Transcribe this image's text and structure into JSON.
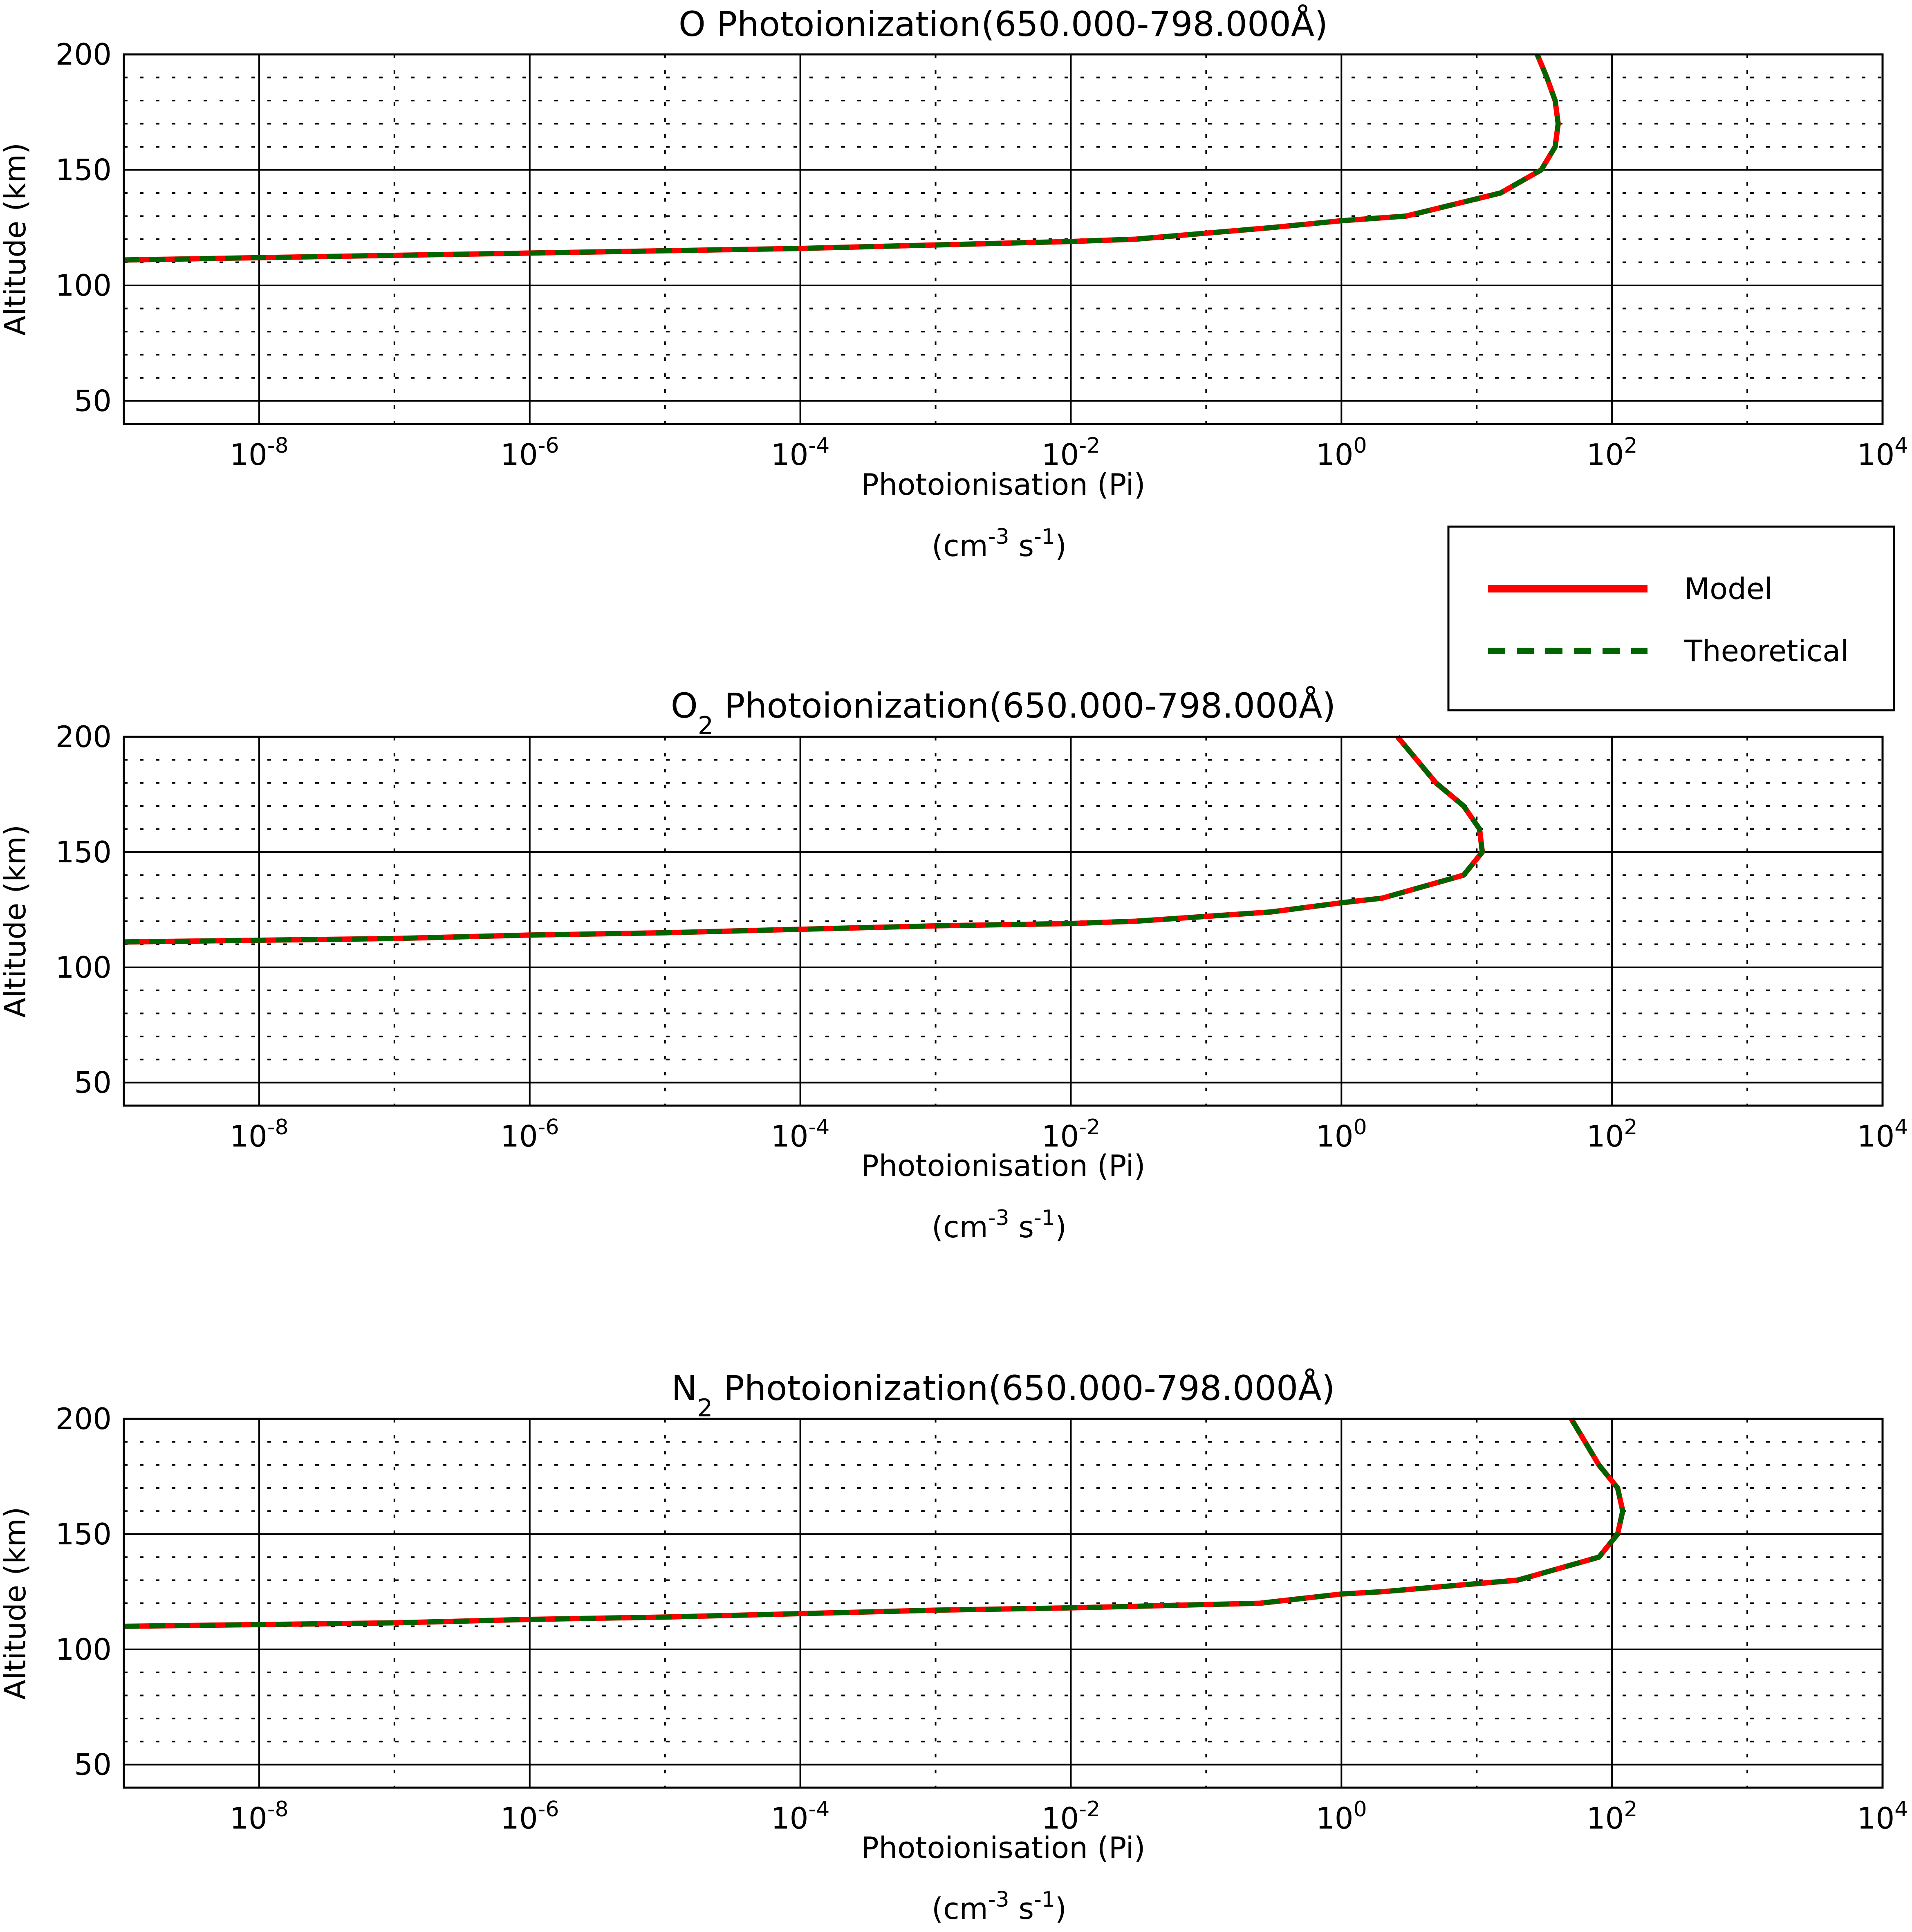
{
  "chart_data": [
    {
      "type": "line",
      "title": "O Photoionization(650.000-798.000Å)",
      "title_species": "O",
      "title_subscript": "",
      "title_rest": " Photoionization(650.000-798.000Å)",
      "xlabel": "Photoionisation (Pi)",
      "xunits": {
        "base": "(cm",
        "exp1": "-3",
        "mid": " s",
        "exp2": "-1",
        "end": ")"
      },
      "ylabel": "Altitude (km)",
      "xscale": "log",
      "xlim": [
        1e-09,
        10000
      ],
      "ylim": [
        40,
        200
      ],
      "xticks": [
        1e-08,
        1e-06,
        0.0001,
        0.01,
        1,
        100,
        10000
      ],
      "xtick_labels": [
        {
          "base": "10",
          "exp": "-8"
        },
        {
          "base": "10",
          "exp": "-6"
        },
        {
          "base": "10",
          "exp": "-4"
        },
        {
          "base": "10",
          "exp": "-2"
        },
        {
          "base": "10",
          "exp": "0"
        },
        {
          "base": "10",
          "exp": "2"
        },
        {
          "base": "10",
          "exp": "4"
        }
      ],
      "yticks": [
        "50",
        "100",
        "150",
        "200"
      ],
      "grid": "major solid, minor dotted",
      "series": [
        {
          "name": "Model",
          "color": "#ff0000",
          "style": "solid",
          "x": [
            1e-09,
            1e-07,
            1e-06,
            1e-05,
            0.0001,
            0.001,
            0.01,
            0.03,
            0.3,
            1,
            3,
            15,
            30,
            38,
            40,
            38,
            33,
            28
          ],
          "y": [
            111,
            113,
            114,
            115,
            116,
            117.5,
            119,
            120,
            125,
            128,
            130,
            140,
            150,
            160,
            170,
            180,
            190,
            200
          ]
        },
        {
          "name": "Theoretical",
          "color": "#006400",
          "style": "dashed",
          "x": [
            1e-09,
            1e-07,
            1e-06,
            1e-05,
            0.0001,
            0.001,
            0.01,
            0.03,
            0.3,
            1,
            3,
            15,
            30,
            38,
            40,
            38,
            33,
            28
          ],
          "y": [
            111,
            113,
            114,
            115,
            116,
            117.5,
            119,
            120,
            125,
            128,
            130,
            140,
            150,
            160,
            170,
            180,
            190,
            200
          ]
        }
      ]
    },
    {
      "type": "line",
      "title": "O2 Photoionization(650.000-798.000Å)",
      "title_species": "O",
      "title_subscript": "2",
      "title_rest": " Photoionization(650.000-798.000Å)",
      "xlabel": "Photoionisation (Pi)",
      "xunits": {
        "base": "(cm",
        "exp1": "-3",
        "mid": " s",
        "exp2": "-1",
        "end": ")"
      },
      "ylabel": "Altitude (km)",
      "xscale": "log",
      "xlim": [
        1e-09,
        10000
      ],
      "ylim": [
        40,
        200
      ],
      "xticks": [
        1e-08,
        1e-06,
        0.0001,
        0.01,
        1,
        100,
        10000
      ],
      "xtick_labels": [
        {
          "base": "10",
          "exp": "-8"
        },
        {
          "base": "10",
          "exp": "-6"
        },
        {
          "base": "10",
          "exp": "-4"
        },
        {
          "base": "10",
          "exp": "-2"
        },
        {
          "base": "10",
          "exp": "0"
        },
        {
          "base": "10",
          "exp": "2"
        },
        {
          "base": "10",
          "exp": "4"
        }
      ],
      "yticks": [
        "50",
        "100",
        "150",
        "200"
      ],
      "grid": "major solid, minor dotted",
      "series": [
        {
          "name": "Model",
          "color": "#ff0000",
          "style": "solid",
          "x": [
            1e-09,
            1e-07,
            1e-06,
            1e-05,
            0.0001,
            0.001,
            0.01,
            0.03,
            0.3,
            1,
            2,
            8,
            11,
            10.5,
            8,
            5,
            2.6
          ],
          "y": [
            111,
            112.5,
            114,
            115,
            116.5,
            118,
            119,
            120,
            124,
            128,
            130,
            140,
            150,
            160,
            170,
            180,
            200
          ]
        },
        {
          "name": "Theoretical",
          "color": "#006400",
          "style": "dashed",
          "x": [
            1e-09,
            1e-07,
            1e-06,
            1e-05,
            0.0001,
            0.001,
            0.01,
            0.03,
            0.3,
            1,
            2,
            8,
            11,
            10.5,
            8,
            5,
            2.6
          ],
          "y": [
            111,
            112.5,
            114,
            115,
            116.5,
            118,
            119,
            120,
            124,
            128,
            130,
            140,
            150,
            160,
            170,
            180,
            200
          ]
        }
      ]
    },
    {
      "type": "line",
      "title": "N2 Photoionization(650.000-798.000Å)",
      "title_species": "N",
      "title_subscript": "2",
      "title_rest": " Photoionization(650.000-798.000Å)",
      "xlabel": "Photoionisation (Pi)",
      "xunits": {
        "base": "(cm",
        "exp1": "-3",
        "mid": " s",
        "exp2": "-1",
        "end": ")"
      },
      "ylabel": "Altitude (km)",
      "xscale": "log",
      "xlim": [
        1e-09,
        10000
      ],
      "ylim": [
        40,
        200
      ],
      "xticks": [
        1e-08,
        1e-06,
        0.0001,
        0.01,
        1,
        100,
        10000
      ],
      "xtick_labels": [
        {
          "base": "10",
          "exp": "-8"
        },
        {
          "base": "10",
          "exp": "-6"
        },
        {
          "base": "10",
          "exp": "-4"
        },
        {
          "base": "10",
          "exp": "-2"
        },
        {
          "base": "10",
          "exp": "0"
        },
        {
          "base": "10",
          "exp": "2"
        },
        {
          "base": "10",
          "exp": "4"
        }
      ],
      "yticks": [
        "50",
        "100",
        "150",
        "200"
      ],
      "grid": "major solid, minor dotted",
      "series": [
        {
          "name": "Model",
          "color": "#ff0000",
          "style": "solid",
          "x": [
            1e-09,
            1e-07,
            1e-06,
            1e-05,
            0.0001,
            0.001,
            0.01,
            0.25,
            1,
            2,
            20,
            80,
            110,
            120,
            110,
            80,
            50
          ],
          "y": [
            110,
            111.5,
            113,
            114,
            115.5,
            117,
            118,
            120,
            124,
            125,
            130,
            140,
            150,
            160,
            170,
            180,
            200
          ]
        },
        {
          "name": "Theoretical",
          "color": "#006400",
          "style": "dashed",
          "x": [
            1e-09,
            1e-07,
            1e-06,
            1e-05,
            0.0001,
            0.001,
            0.01,
            0.25,
            1,
            2,
            20,
            80,
            110,
            120,
            110,
            80,
            50
          ],
          "y": [
            110,
            111.5,
            113,
            114,
            115.5,
            117,
            118,
            120,
            124,
            125,
            130,
            140,
            150,
            160,
            170,
            180,
            200
          ]
        }
      ]
    }
  ],
  "legend": {
    "position": "right, between first and second plot",
    "entries": [
      {
        "label": "Model",
        "color": "#ff0000",
        "style": "solid"
      },
      {
        "label": "Theoretical",
        "color": "#006400",
        "style": "dashed"
      }
    ]
  }
}
